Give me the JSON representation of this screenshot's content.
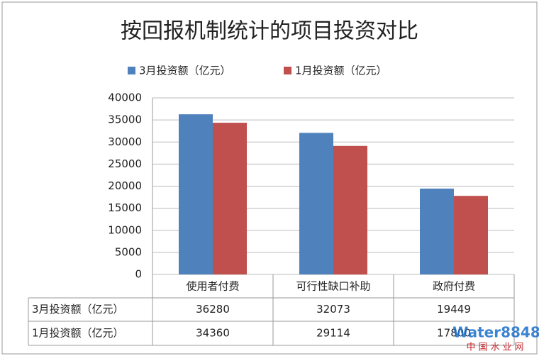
{
  "chart_data": {
    "type": "bar",
    "title": "按回报机制统计的项目投资对比",
    "categories": [
      "使用者付费",
      "可行性缺口补助",
      "政府付费"
    ],
    "series": [
      {
        "name": "3月投资额（亿元）",
        "color": "#4f81bd",
        "values": [
          36280,
          32073,
          19449
        ]
      },
      {
        "name": "1月投资额（亿元）",
        "color": "#c0504d",
        "values": [
          34360,
          29114,
          17800
        ]
      }
    ],
    "ylim": [
      0,
      40000
    ],
    "yticks": [
      0,
      5000,
      10000,
      15000,
      20000,
      25000,
      30000,
      35000,
      40000
    ],
    "grid": true,
    "legend": "top",
    "data_table": true
  },
  "watermark": {
    "brand": "Water8848",
    "site": "中国水业网"
  }
}
